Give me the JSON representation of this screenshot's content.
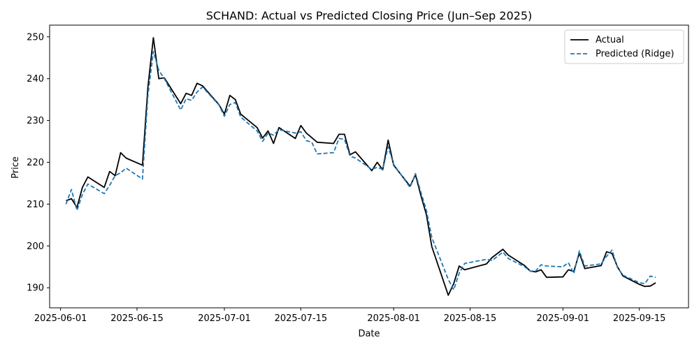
{
  "chart_data": {
    "type": "line",
    "title": "SCHAND: Actual vs Predicted Closing Price (Jun–Sep 2025)",
    "xlabel": "Date",
    "ylabel": "Price",
    "xlim": [
      "2025-05-30",
      "2025-09-24"
    ],
    "ylim": [
      185.2,
      252.8
    ],
    "x_ticks": [
      "2025-06-01",
      "2025-06-15",
      "2025-07-01",
      "2025-07-15",
      "2025-08-01",
      "2025-08-15",
      "2025-09-01",
      "2025-09-15"
    ],
    "y_ticks": [
      190,
      200,
      210,
      220,
      230,
      240,
      250
    ],
    "grid": false,
    "legend_position": "top-right",
    "series": [
      {
        "name": "Actual",
        "color": "#000000",
        "style": "solid",
        "points": [
          [
            "2025-06-02",
            210.8
          ],
          [
            "2025-06-03",
            211.3
          ],
          [
            "2025-06-04",
            209.2
          ],
          [
            "2025-06-05",
            214.0
          ],
          [
            "2025-06-06",
            216.5
          ],
          [
            "2025-06-09",
            214.0
          ],
          [
            "2025-06-10",
            217.8
          ],
          [
            "2025-06-11",
            216.8
          ],
          [
            "2025-06-12",
            222.3
          ],
          [
            "2025-06-13",
            221.0
          ],
          [
            "2025-06-16",
            219.3
          ],
          [
            "2025-06-17",
            238.0
          ],
          [
            "2025-06-18",
            249.8
          ],
          [
            "2025-06-19",
            240.0
          ],
          [
            "2025-06-20",
            240.2
          ],
          [
            "2025-06-23",
            234.0
          ],
          [
            "2025-06-24",
            236.5
          ],
          [
            "2025-06-25",
            236.0
          ],
          [
            "2025-06-26",
            238.9
          ],
          [
            "2025-06-27",
            238.3
          ],
          [
            "2025-06-30",
            233.8
          ],
          [
            "2025-07-01",
            231.5
          ],
          [
            "2025-07-02",
            236.0
          ],
          [
            "2025-07-03",
            235.0
          ],
          [
            "2025-07-04",
            231.5
          ],
          [
            "2025-07-07",
            228.3
          ],
          [
            "2025-07-08",
            225.8
          ],
          [
            "2025-07-09",
            227.5
          ],
          [
            "2025-07-10",
            224.5
          ],
          [
            "2025-07-11",
            228.3
          ],
          [
            "2025-07-14",
            225.7
          ],
          [
            "2025-07-15",
            228.8
          ],
          [
            "2025-07-16",
            227.0
          ],
          [
            "2025-07-18",
            224.8
          ],
          [
            "2025-07-21",
            224.5
          ],
          [
            "2025-07-22",
            226.7
          ],
          [
            "2025-07-23",
            226.7
          ],
          [
            "2025-07-24",
            221.8
          ],
          [
            "2025-07-25",
            222.5
          ],
          [
            "2025-07-28",
            218.0
          ],
          [
            "2025-07-29",
            220.0
          ],
          [
            "2025-07-30",
            218.2
          ],
          [
            "2025-07-31",
            225.3
          ],
          [
            "2025-08-01",
            219.3
          ],
          [
            "2025-08-04",
            214.3
          ],
          [
            "2025-08-05",
            217.0
          ],
          [
            "2025-08-06",
            212.0
          ],
          [
            "2025-08-07",
            207.5
          ],
          [
            "2025-08-08",
            199.8
          ],
          [
            "2025-08-11",
            188.2
          ],
          [
            "2025-08-12",
            191.0
          ],
          [
            "2025-08-13",
            195.2
          ],
          [
            "2025-08-14",
            194.3
          ],
          [
            "2025-08-18",
            195.7
          ],
          [
            "2025-08-19",
            197.2
          ],
          [
            "2025-08-21",
            199.2
          ],
          [
            "2025-08-22",
            197.8
          ],
          [
            "2025-08-25",
            195.3
          ],
          [
            "2025-08-26",
            194.0
          ],
          [
            "2025-08-27",
            193.8
          ],
          [
            "2025-08-28",
            194.3
          ],
          [
            "2025-08-29",
            192.5
          ],
          [
            "2025-09-01",
            192.6
          ],
          [
            "2025-09-02",
            194.3
          ],
          [
            "2025-09-03",
            193.9
          ],
          [
            "2025-09-04",
            198.3
          ],
          [
            "2025-09-05",
            194.6
          ],
          [
            "2025-09-08",
            195.3
          ],
          [
            "2025-09-09",
            198.6
          ],
          [
            "2025-09-10",
            198.2
          ],
          [
            "2025-09-11",
            195.0
          ],
          [
            "2025-09-12",
            192.8
          ],
          [
            "2025-09-15",
            190.8
          ],
          [
            "2025-09-16",
            190.3
          ],
          [
            "2025-09-17",
            190.4
          ],
          [
            "2025-09-18",
            191.2
          ]
        ]
      },
      {
        "name": "Predicted (Ridge)",
        "color": "#1f77b4",
        "style": "dashed",
        "points": [
          [
            "2025-06-02",
            210.0
          ],
          [
            "2025-06-03",
            213.5
          ],
          [
            "2025-06-04",
            208.5
          ],
          [
            "2025-06-05",
            212.3
          ],
          [
            "2025-06-06",
            214.8
          ],
          [
            "2025-06-09",
            212.5
          ],
          [
            "2025-06-10",
            214.5
          ],
          [
            "2025-06-11",
            216.8
          ],
          [
            "2025-06-12",
            217.5
          ],
          [
            "2025-06-13",
            218.6
          ],
          [
            "2025-06-16",
            216.0
          ],
          [
            "2025-06-17",
            236.0
          ],
          [
            "2025-06-18",
            246.5
          ],
          [
            "2025-06-19",
            242.0
          ],
          [
            "2025-06-20",
            240.0
          ],
          [
            "2025-06-23",
            232.5
          ],
          [
            "2025-06-24",
            235.2
          ],
          [
            "2025-06-25",
            234.8
          ],
          [
            "2025-06-26",
            236.8
          ],
          [
            "2025-06-27",
            238.0
          ],
          [
            "2025-06-30",
            233.7
          ],
          [
            "2025-07-01",
            231.0
          ],
          [
            "2025-07-02",
            233.8
          ],
          [
            "2025-07-03",
            234.3
          ],
          [
            "2025-07-04",
            230.8
          ],
          [
            "2025-07-07",
            227.5
          ],
          [
            "2025-07-08",
            225.0
          ],
          [
            "2025-07-09",
            227.0
          ],
          [
            "2025-07-10",
            226.5
          ],
          [
            "2025-07-11",
            227.8
          ],
          [
            "2025-07-14",
            227.0
          ],
          [
            "2025-07-15",
            227.3
          ],
          [
            "2025-07-16",
            225.2
          ],
          [
            "2025-07-17",
            224.8
          ],
          [
            "2025-07-18",
            222.0
          ],
          [
            "2025-07-21",
            222.3
          ],
          [
            "2025-07-22",
            225.7
          ],
          [
            "2025-07-23",
            225.5
          ],
          [
            "2025-07-24",
            221.5
          ],
          [
            "2025-07-25",
            221.0
          ],
          [
            "2025-07-28",
            218.3
          ],
          [
            "2025-07-29",
            218.8
          ],
          [
            "2025-07-30",
            218.3
          ],
          [
            "2025-07-31",
            223.7
          ],
          [
            "2025-08-01",
            219.5
          ],
          [
            "2025-08-04",
            214.0
          ],
          [
            "2025-08-05",
            217.3
          ],
          [
            "2025-08-06",
            212.8
          ],
          [
            "2025-08-07",
            208.5
          ],
          [
            "2025-08-08",
            202.0
          ],
          [
            "2025-08-11",
            192.0
          ],
          [
            "2025-08-12",
            189.5
          ],
          [
            "2025-08-13",
            193.5
          ],
          [
            "2025-08-14",
            195.8
          ],
          [
            "2025-08-18",
            196.8
          ],
          [
            "2025-08-19",
            196.5
          ],
          [
            "2025-08-21",
            198.5
          ],
          [
            "2025-08-22",
            197.0
          ],
          [
            "2025-08-25",
            195.0
          ],
          [
            "2025-08-26",
            194.0
          ],
          [
            "2025-08-27",
            194.0
          ],
          [
            "2025-08-28",
            195.5
          ],
          [
            "2025-08-29",
            195.2
          ],
          [
            "2025-09-01",
            195.0
          ],
          [
            "2025-09-02",
            196.0
          ],
          [
            "2025-09-03",
            193.4
          ],
          [
            "2025-09-04",
            198.8
          ],
          [
            "2025-09-05",
            195.2
          ],
          [
            "2025-09-08",
            195.7
          ],
          [
            "2025-09-09",
            197.5
          ],
          [
            "2025-09-10",
            199.0
          ],
          [
            "2025-09-11",
            194.8
          ],
          [
            "2025-09-12",
            193.0
          ],
          [
            "2025-09-15",
            191.2
          ],
          [
            "2025-09-16",
            191.0
          ],
          [
            "2025-09-17",
            192.8
          ],
          [
            "2025-09-18",
            192.5
          ]
        ]
      }
    ]
  }
}
